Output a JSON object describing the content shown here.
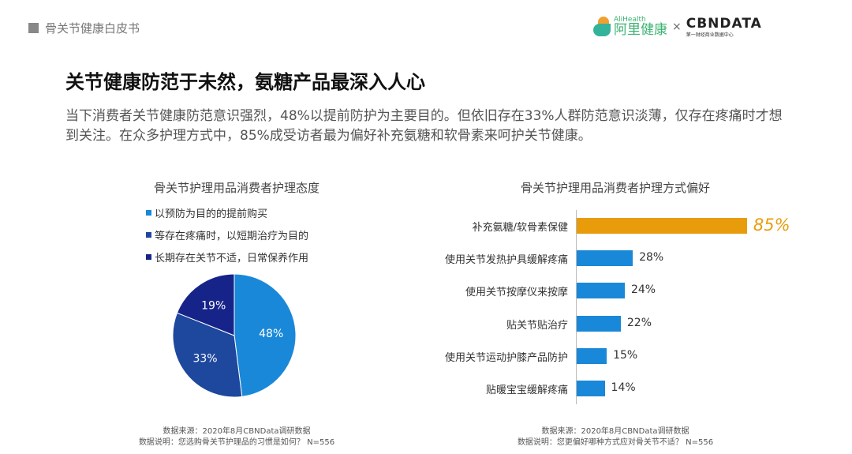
{
  "header": {
    "section": "骨关节健康白皮书"
  },
  "logos": {
    "ali_en": "AliHealth",
    "ali_cn": "阿里健康",
    "times": "×",
    "cbn": "CBNDATA",
    "cbn_sub": "第一财经商业数据中心"
  },
  "title": "关节健康防范于未然，氨糖产品最深入人心",
  "description": "当下消费者关节健康防范意识强烈，48%以提前防护为主要目的。但依旧存在33%人群防范意识淡薄，仅存在疼痛时才想到关注。在众多护理方式中，85%成受访者最为偏好补充氨糖和软骨素来呵护关节健康。",
  "chart_data": [
    {
      "type": "pie",
      "title": "骨关节护理用品消费者护理态度",
      "legend": [
        "以预防为目的的提前购买",
        "等存在疼痛时，以短期治疗为目的",
        "长期存在关节不适，日常保养作用"
      ],
      "values": [
        48,
        33,
        19
      ],
      "labels": [
        "48%",
        "33%",
        "19%"
      ],
      "colors": [
        "#1a88d8",
        "#1e479e",
        "#16248a"
      ],
      "legend_placement": "top-left"
    },
    {
      "type": "bar",
      "orientation": "horizontal",
      "title": "骨关节护理用品消费者护理方式偏好",
      "categories": [
        "补充氨糖/软骨素保健",
        "使用关节发热护具缓解疼痛",
        "使用关节按摩仪来按摩",
        "贴关节贴治疗",
        "使用关节运动护膝产品防护",
        "贴暖宝宝缓解疼痛"
      ],
      "values": [
        85,
        28,
        24,
        22,
        15,
        14
      ],
      "labels": [
        "85%",
        "28%",
        "24%",
        "22%",
        "15%",
        "14%"
      ],
      "colors": {
        "highlight": "#e89c0c",
        "default": "#1a88d8"
      }
    }
  ],
  "footnotes": {
    "left": {
      "source": "数据来源：2020年8月CBNData调研数据",
      "note": "数据说明：您选购骨关节护理品的习惯是如何？ N=556"
    },
    "right": {
      "source": "数据来源：2020年8月CBNData调研数据",
      "note": "数据说明：您更偏好哪种方式应对骨关节不适？ N=556"
    }
  }
}
